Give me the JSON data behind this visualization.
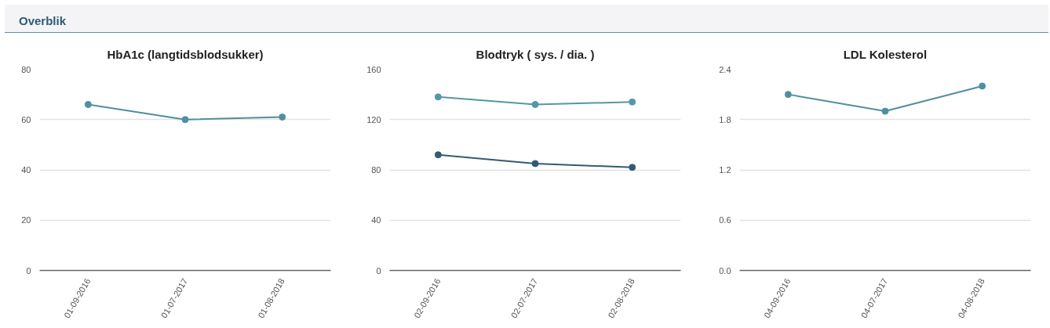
{
  "chart_data": [
    {
      "type": "line",
      "title": "HbA1c (langtidsblodsukker)",
      "annotations": [
        "Overblik"
      ],
      "categories": [
        "01-09-2016",
        "01-07-2017",
        "01-08-2018"
      ],
      "ylim": [
        0,
        80
      ],
      "yticks": [
        0,
        20,
        40,
        60,
        80
      ],
      "grid": "y",
      "marker": "circle",
      "series": [
        {
          "color": "#4e8fa1",
          "values": [
            66,
            60,
            61
          ]
        }
      ]
    },
    {
      "type": "line",
      "title": "Blodtryk ( sys. / dia. )",
      "categories": [
        "02-09-2016",
        "02-07-2017",
        "02-08-2018"
      ],
      "ylim": [
        0,
        160
      ],
      "yticks": [
        0,
        40,
        80,
        120,
        160
      ],
      "grid": "y",
      "marker": "circle",
      "series": [
        {
          "color": "#5596a8",
          "values": [
            138,
            132,
            134
          ]
        },
        {
          "color": "#2f5c75",
          "values": [
            92,
            85,
            82
          ]
        }
      ]
    },
    {
      "type": "line",
      "title": "LDL Kolesterol",
      "categories": [
        "04-09-2016",
        "04-07-2017",
        "04-08-2018"
      ],
      "ylim": [
        0,
        2.4
      ],
      "yticks": [
        {
          "value": 0,
          "label": "0.0"
        },
        0.6,
        1.2,
        1.8,
        2.4
      ],
      "grid": "y",
      "marker": "circle",
      "series": [
        {
          "color": "#4e8fa1",
          "values": [
            2.1,
            1.9,
            2.2
          ]
        }
      ]
    }
  ]
}
